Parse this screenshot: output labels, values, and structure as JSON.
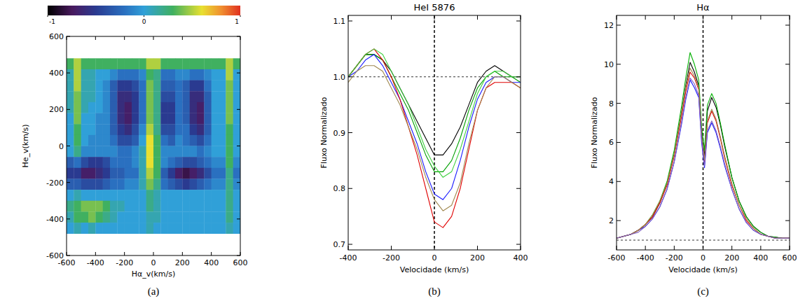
{
  "chart_data": [
    {
      "type": "heatmap",
      "caption": "(a)",
      "x_label": "Hα_v(km/s)",
      "y_label": "He_v(km/s)",
      "xlim": [
        -600,
        600
      ],
      "ylim": [
        -600,
        600
      ],
      "xticks": [
        -600,
        -400,
        -200,
        0,
        200,
        400,
        600
      ],
      "yticks": [
        -600,
        -400,
        -200,
        0,
        200,
        400,
        600
      ],
      "x": [
        -575,
        -525,
        -475,
        -425,
        -375,
        -325,
        -275,
        -225,
        -175,
        -125,
        -75,
        -25,
        25,
        75,
        125,
        175,
        225,
        275,
        325,
        375,
        425,
        475,
        525,
        575
      ],
      "y": [
        450,
        390,
        330,
        270,
        210,
        150,
        90,
        30,
        -30,
        -90,
        -150,
        -210,
        -270,
        -330,
        -390,
        -450
      ],
      "z": [
        [
          0.3,
          0.5,
          0.3,
          0.3,
          0.3,
          0.3,
          0.3,
          0.3,
          0.3,
          0.3,
          0.3,
          0.5,
          0.5,
          0.3,
          0.3,
          0.3,
          0.3,
          0.3,
          0.3,
          0.3,
          0.3,
          0.3,
          0.5,
          0.3
        ],
        [
          0.1,
          0.5,
          0.1,
          0.1,
          0.0,
          0.0,
          -0.1,
          -0.2,
          -0.2,
          -0.2,
          -0.1,
          0.3,
          0.2,
          -0.2,
          -0.2,
          -0.1,
          -0.1,
          -0.2,
          -0.2,
          -0.1,
          0.0,
          0.0,
          0.5,
          0.0
        ],
        [
          0.1,
          0.5,
          0.1,
          0.1,
          0.0,
          -0.1,
          -0.3,
          -0.5,
          -0.5,
          -0.4,
          -0.2,
          0.4,
          0.2,
          -0.3,
          -0.3,
          -0.2,
          -0.3,
          -0.5,
          -0.5,
          -0.2,
          0.0,
          0.0,
          0.4,
          0.0
        ],
        [
          0.1,
          0.4,
          0.1,
          0.1,
          0.0,
          -0.1,
          -0.3,
          -0.6,
          -0.6,
          -0.5,
          -0.2,
          0.4,
          0.2,
          -0.4,
          -0.4,
          -0.2,
          -0.3,
          -0.6,
          -0.6,
          -0.3,
          0.0,
          0.0,
          0.4,
          0.0
        ],
        [
          0.1,
          0.4,
          0.1,
          0.0,
          0.0,
          -0.1,
          -0.3,
          -0.6,
          -0.7,
          -0.5,
          -0.2,
          0.4,
          0.2,
          -0.5,
          -0.5,
          -0.2,
          -0.3,
          -0.6,
          -0.7,
          -0.3,
          0.0,
          0.0,
          0.4,
          0.0
        ],
        [
          0.0,
          0.4,
          0.0,
          0.0,
          -0.1,
          -0.1,
          -0.3,
          -0.6,
          -0.7,
          -0.5,
          -0.2,
          0.4,
          0.2,
          -0.5,
          -0.5,
          -0.2,
          -0.3,
          -0.6,
          -0.7,
          -0.3,
          0.0,
          0.0,
          0.4,
          0.0
        ],
        [
          0.0,
          0.3,
          0.0,
          0.0,
          -0.1,
          -0.1,
          -0.3,
          -0.5,
          -0.6,
          -0.4,
          -0.1,
          0.5,
          0.2,
          -0.4,
          -0.4,
          -0.2,
          -0.2,
          -0.5,
          -0.6,
          -0.3,
          0.0,
          0.0,
          0.3,
          0.0
        ],
        [
          0.0,
          0.3,
          0.0,
          -0.1,
          -0.1,
          -0.1,
          -0.2,
          -0.4,
          -0.4,
          -0.3,
          0.0,
          0.6,
          0.3,
          -0.2,
          -0.3,
          -0.1,
          -0.2,
          -0.3,
          -0.4,
          -0.2,
          0.0,
          0.0,
          0.3,
          0.0
        ],
        [
          0.0,
          0.2,
          -0.1,
          -0.1,
          -0.1,
          -0.1,
          -0.1,
          -0.2,
          -0.2,
          -0.1,
          0.1,
          0.6,
          0.3,
          -0.1,
          -0.1,
          -0.1,
          -0.1,
          -0.1,
          -0.2,
          -0.1,
          0.0,
          0.0,
          0.3,
          0.0
        ],
        [
          -0.3,
          -0.2,
          -0.4,
          -0.5,
          -0.5,
          -0.4,
          -0.2,
          -0.2,
          -0.2,
          -0.1,
          0.1,
          0.6,
          0.3,
          -0.1,
          -0.2,
          -0.3,
          -0.4,
          -0.4,
          -0.3,
          -0.2,
          -0.1,
          -0.1,
          0.3,
          -0.1
        ],
        [
          -0.5,
          -0.5,
          -0.7,
          -0.7,
          -0.6,
          -0.5,
          -0.3,
          -0.3,
          -0.2,
          -0.2,
          0.1,
          0.5,
          0.3,
          -0.3,
          -0.5,
          -0.7,
          -0.8,
          -0.7,
          -0.6,
          -0.4,
          -0.2,
          -0.2,
          0.2,
          -0.2
        ],
        [
          -0.3,
          -0.3,
          -0.4,
          -0.4,
          -0.4,
          -0.3,
          -0.2,
          -0.2,
          -0.1,
          -0.1,
          0.1,
          0.4,
          0.2,
          -0.2,
          -0.3,
          -0.4,
          -0.5,
          -0.4,
          -0.3,
          -0.2,
          -0.1,
          -0.1,
          0.2,
          -0.1
        ],
        [
          0.0,
          0.1,
          0.0,
          0.0,
          0.0,
          0.0,
          0.0,
          0.0,
          0.0,
          0.0,
          0.0,
          0.2,
          0.1,
          0.0,
          0.0,
          0.0,
          0.0,
          0.0,
          0.0,
          0.0,
          0.0,
          0.0,
          0.2,
          0.0
        ],
        [
          0.2,
          0.3,
          0.4,
          0.4,
          0.4,
          0.3,
          0.1,
          0.1,
          0.0,
          0.0,
          0.0,
          0.2,
          0.1,
          0.0,
          0.0,
          0.0,
          0.0,
          0.0,
          0.0,
          0.0,
          0.0,
          0.0,
          0.2,
          0.0
        ],
        [
          0.1,
          0.3,
          0.3,
          0.4,
          0.3,
          0.2,
          0.1,
          0.0,
          0.0,
          0.0,
          0.0,
          0.1,
          0.1,
          0.0,
          0.0,
          0.0,
          0.0,
          0.0,
          0.0,
          0.0,
          0.0,
          0.0,
          0.2,
          0.0
        ],
        [
          0.0,
          0.1,
          0.0,
          0.1,
          0.0,
          0.0,
          0.0,
          0.0,
          0.0,
          0.0,
          0.0,
          0.1,
          0.0,
          0.0,
          0.0,
          0.0,
          0.0,
          0.0,
          0.0,
          0.0,
          0.0,
          0.0,
          0.1,
          0.0
        ]
      ],
      "colorbar": {
        "range": [
          -1,
          1
        ],
        "ticks": [
          -1,
          0,
          1
        ]
      }
    },
    {
      "type": "line",
      "title": "HeI 5876",
      "caption": "(b)",
      "x_label": "Velocidade (km/s)",
      "y_label": "Fluxo Normalizado",
      "xlim": [
        -400,
        400
      ],
      "ylim": [
        0.69,
        1.11
      ],
      "xticks": [
        -400,
        -200,
        0,
        200,
        400
      ],
      "yticks": [
        0.7,
        0.8,
        0.9,
        {
          "value": 1.0,
          "label": "1.0"
        },
        1.1
      ],
      "hlines": [
        1.0
      ],
      "vlines": [
        0
      ],
      "x": [
        -400,
        -360,
        -320,
        -280,
        -240,
        -200,
        -160,
        -120,
        -80,
        -40,
        0,
        40,
        80,
        120,
        160,
        200,
        240,
        280,
        320,
        360,
        400
      ],
      "series": [
        {
          "color": "#000000",
          "values": [
            1.0,
            1.02,
            1.04,
            1.04,
            1.03,
            1.01,
            0.98,
            0.95,
            0.92,
            0.89,
            0.86,
            0.86,
            0.88,
            0.91,
            0.95,
            0.99,
            1.01,
            1.02,
            1.01,
            1.0,
            1.0
          ]
        },
        {
          "color": "#00a000",
          "values": [
            1.0,
            1.02,
            1.04,
            1.04,
            1.03,
            1.0,
            0.97,
            0.94,
            0.9,
            0.86,
            0.83,
            0.83,
            0.85,
            0.89,
            0.94,
            0.98,
            1.0,
            1.01,
            1.0,
            1.0,
            0.99
          ]
        },
        {
          "color": "#1a1aff",
          "values": [
            1.0,
            1.01,
            1.03,
            1.04,
            1.02,
            0.99,
            0.96,
            0.92,
            0.88,
            0.83,
            0.79,
            0.78,
            0.8,
            0.85,
            0.91,
            0.96,
            0.99,
            1.0,
            1.0,
            0.99,
            0.99
          ]
        },
        {
          "color": "#e00000",
          "values": [
            1.0,
            1.02,
            1.04,
            1.05,
            1.03,
            1.0,
            0.96,
            0.91,
            0.86,
            0.8,
            0.74,
            0.73,
            0.75,
            0.8,
            0.87,
            0.94,
            0.98,
            0.99,
            0.99,
            0.99,
            0.98
          ]
        },
        {
          "color": "#a08850",
          "values": [
            0.99,
            1.01,
            1.02,
            1.02,
            1.01,
            0.98,
            0.95,
            0.91,
            0.87,
            0.82,
            0.78,
            0.76,
            0.77,
            0.81,
            0.88,
            0.94,
            0.98,
            1.0,
            1.0,
            0.99,
            0.98
          ]
        },
        {
          "color": "#40d040",
          "values": [
            1.0,
            1.02,
            1.04,
            1.05,
            1.04,
            1.01,
            0.98,
            0.95,
            0.91,
            0.87,
            0.84,
            0.82,
            0.83,
            0.87,
            0.92,
            0.97,
            1.0,
            1.01,
            1.01,
            1.0,
            1.0
          ]
        }
      ]
    },
    {
      "type": "line",
      "title": "Hα",
      "caption": "(c)",
      "x_label": "Velocidade (km/s)",
      "y_label": "Fluxo Normalizado",
      "xlim": [
        -600,
        600
      ],
      "ylim": [
        0.5,
        12.5
      ],
      "xticks": [
        -600,
        -400,
        -200,
        0,
        200,
        400,
        600
      ],
      "yticks": [
        2,
        4,
        6,
        8,
        10,
        12
      ],
      "hlines": [
        1
      ],
      "vlines": [
        0
      ],
      "x": [
        -600,
        -550,
        -500,
        -450,
        -400,
        -350,
        -300,
        -250,
        -200,
        -150,
        -120,
        -90,
        -60,
        -30,
        -10,
        10,
        30,
        60,
        90,
        120,
        150,
        200,
        250,
        300,
        350,
        400,
        450,
        500,
        550,
        600
      ],
      "series": [
        {
          "color": "#000000",
          "values": [
            1.1,
            1.2,
            1.3,
            1.5,
            1.8,
            2.2,
            2.9,
            3.9,
            5.4,
            7.5,
            8.9,
            10.1,
            9.6,
            8.9,
            6.5,
            5.3,
            7.6,
            8.3,
            7.8,
            6.9,
            5.8,
            4.2,
            3.0,
            2.2,
            1.7,
            1.4,
            1.2,
            1.15,
            1.1,
            1.1
          ]
        },
        {
          "color": "#00b000",
          "values": [
            1.1,
            1.2,
            1.3,
            1.5,
            1.8,
            2.3,
            3.0,
            4.0,
            5.6,
            7.8,
            9.3,
            10.6,
            10.0,
            9.2,
            6.8,
            5.6,
            7.9,
            8.5,
            8.0,
            7.0,
            5.9,
            4.2,
            3.0,
            2.2,
            1.7,
            1.4,
            1.2,
            1.15,
            1.1,
            1.1
          ]
        },
        {
          "color": "#1a1aff",
          "values": [
            1.1,
            1.2,
            1.3,
            1.5,
            1.7,
            2.1,
            2.7,
            3.6,
            5.0,
            6.9,
            8.2,
            9.2,
            8.8,
            8.3,
            6.0,
            4.7,
            6.5,
            7.0,
            6.5,
            5.7,
            4.8,
            3.6,
            2.6,
            1.9,
            1.5,
            1.3,
            1.2,
            1.1,
            1.1,
            1.1
          ]
        },
        {
          "color": "#e00000",
          "values": [
            1.1,
            1.2,
            1.3,
            1.5,
            1.8,
            2.2,
            2.9,
            3.8,
            5.3,
            7.3,
            8.6,
            9.6,
            9.3,
            8.7,
            6.3,
            5.0,
            7.0,
            7.6,
            7.1,
            6.2,
            5.2,
            3.8,
            2.8,
            2.0,
            1.6,
            1.3,
            1.2,
            1.1,
            1.1,
            1.1
          ]
        },
        {
          "color": "#a08850",
          "values": [
            1.1,
            1.2,
            1.3,
            1.5,
            1.8,
            2.3,
            3.0,
            3.9,
            5.4,
            7.5,
            8.8,
            9.8,
            9.4,
            8.8,
            6.4,
            5.1,
            7.1,
            7.7,
            7.2,
            6.3,
            5.3,
            3.9,
            2.8,
            2.1,
            1.6,
            1.3,
            1.2,
            1.1,
            1.1,
            1.1
          ]
        },
        {
          "color": "#8060c0",
          "values": [
            1.1,
            1.2,
            1.3,
            1.4,
            1.7,
            2.1,
            2.7,
            3.6,
            5.0,
            7.0,
            8.3,
            9.3,
            9.0,
            8.4,
            6.2,
            4.8,
            6.6,
            7.1,
            6.6,
            5.8,
            4.9,
            3.6,
            2.6,
            1.9,
            1.5,
            1.3,
            1.2,
            1.1,
            1.1,
            1.1
          ]
        }
      ]
    }
  ]
}
